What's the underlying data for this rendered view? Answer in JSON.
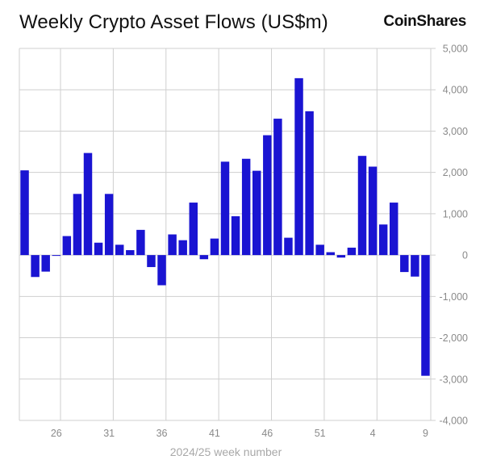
{
  "header": {
    "title": "Weekly Crypto Asset Flows (US$m)",
    "brand": "CoinShares"
  },
  "chart_data": {
    "type": "bar",
    "title": "Weekly Crypto Asset Flows (US$m)",
    "xlabel": "2024/25 week number",
    "ylabel": "",
    "ylim": [
      -4000,
      5000
    ],
    "ytick_values": [
      -4000,
      -3000,
      -2000,
      -1000,
      0,
      1000,
      2000,
      3000,
      4000,
      5000
    ],
    "ytick_labels": [
      "-4,000",
      "-3,000",
      "-2,000",
      "-1,000",
      "0",
      "1,000",
      "2,000",
      "3,000",
      "4,000",
      "5,000"
    ],
    "xtick_labels": [
      "26",
      "31",
      "36",
      "41",
      "46",
      "51",
      "4",
      "9"
    ],
    "xtick_bar_index": [
      3,
      8,
      13,
      18,
      23,
      28,
      33,
      38
    ],
    "grid": true,
    "bar_color": "#1a14d2",
    "categories": [
      "23",
      "24",
      "25",
      "26",
      "27",
      "28",
      "29",
      "30",
      "31",
      "32",
      "33",
      "34",
      "35",
      "36",
      "37",
      "38",
      "39",
      "40",
      "41",
      "42",
      "43",
      "44",
      "45",
      "46",
      "47",
      "48",
      "49",
      "50",
      "51",
      "52",
      "1",
      "2",
      "3",
      "4",
      "5",
      "6",
      "7",
      "8",
      "9"
    ],
    "values": [
      2050,
      -530,
      -400,
      -10,
      460,
      1480,
      2470,
      300,
      1480,
      250,
      120,
      610,
      -290,
      -730,
      500,
      360,
      1270,
      -100,
      400,
      2260,
      940,
      2330,
      2040,
      2900,
      3300,
      420,
      4280,
      3480,
      250,
      70,
      -60,
      180,
      2400,
      2140,
      740,
      1270,
      -410,
      -520,
      -2920
    ]
  }
}
